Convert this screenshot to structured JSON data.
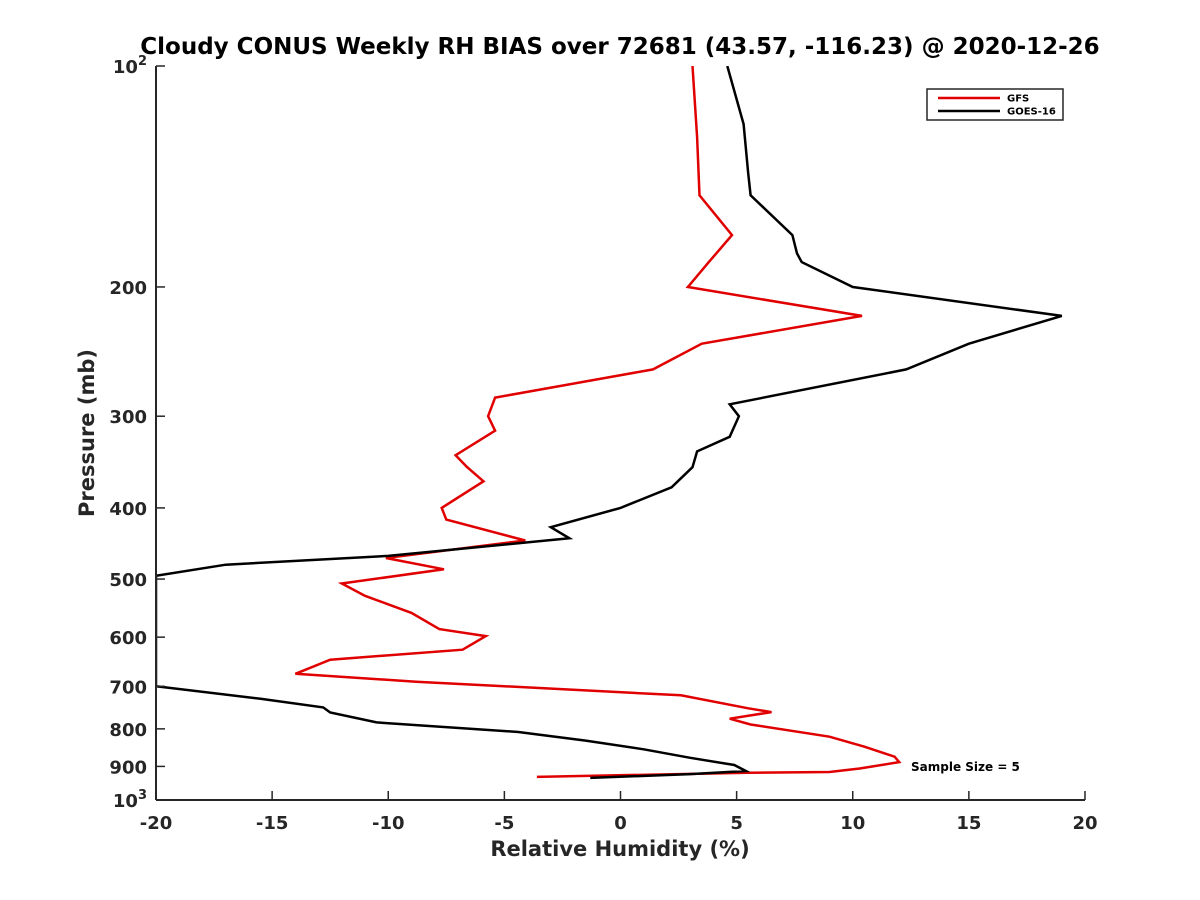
{
  "chart_data": {
    "type": "line",
    "title": "Cloudy CONUS Weekly RH BIAS over 72681 (43.57, -116.23) @ 2020-12-26",
    "xlabel": "Relative Humidity (%)",
    "ylabel": "Pressure (mb)",
    "xlim": [
      -20,
      20
    ],
    "ylim": [
      100,
      1000
    ],
    "y_scale": "log",
    "y_reversed": true,
    "grid": false,
    "legend_position": "top-right",
    "x_ticks": [
      -20,
      -15,
      -10,
      -5,
      0,
      5,
      10,
      15,
      20
    ],
    "x_tick_labels": [
      "-20",
      "-15",
      "-10",
      "-5",
      "0",
      "5",
      "10",
      "15",
      "20"
    ],
    "y_ticks": [
      100,
      200,
      300,
      400,
      500,
      600,
      700,
      800,
      900,
      1000
    ],
    "y_tick_labels": [
      {
        "base": "10",
        "exp": "2"
      },
      {
        "base": "200"
      },
      {
        "base": "300"
      },
      {
        "base": "400"
      },
      {
        "base": "500"
      },
      {
        "base": "600"
      },
      {
        "base": "700"
      },
      {
        "base": "800"
      },
      {
        "base": "900"
      },
      {
        "base": "10",
        "exp": "3"
      }
    ],
    "series": [
      {
        "name": "GFS",
        "color": "#e00000",
        "points": [
          [
            3.1,
            100
          ],
          [
            3.3,
            125
          ],
          [
            3.4,
            150
          ],
          [
            4.8,
            170
          ],
          [
            3.8,
            185
          ],
          [
            2.9,
            200
          ],
          [
            10.4,
            219
          ],
          [
            3.5,
            239
          ],
          [
            1.4,
            259
          ],
          [
            -5.4,
            283
          ],
          [
            -5.7,
            300
          ],
          [
            -5.4,
            314
          ],
          [
            -7.1,
            339
          ],
          [
            -6.6,
            352
          ],
          [
            -5.9,
            368
          ],
          [
            -7.7,
            400
          ],
          [
            -7.5,
            415
          ],
          [
            -4.1,
            443
          ],
          [
            -10.1,
            468
          ],
          [
            -7.6,
            485
          ],
          [
            -12.0,
            507
          ],
          [
            -11.0,
            527
          ],
          [
            -9.0,
            556
          ],
          [
            -7.8,
            585
          ],
          [
            -5.8,
            598
          ],
          [
            -6.8,
            624
          ],
          [
            -12.5,
            644
          ],
          [
            -14.0,
            673
          ],
          [
            -8.8,
            690
          ],
          [
            2.6,
            720
          ],
          [
            5.5,
            750
          ],
          [
            6.5,
            759
          ],
          [
            4.7,
            775
          ],
          [
            5.6,
            789
          ],
          [
            9.0,
            820
          ],
          [
            10.5,
            846
          ],
          [
            11.8,
            873
          ],
          [
            12.0,
            888
          ],
          [
            10.3,
            906
          ],
          [
            9.0,
            916
          ],
          [
            5.5,
            918
          ],
          [
            -3.6,
            930
          ]
        ]
      },
      {
        "name": "GOES-16",
        "color": "#000000",
        "points": [
          [
            4.6,
            100
          ],
          [
            5.3,
            120
          ],
          [
            5.5,
            140
          ],
          [
            5.6,
            150
          ],
          [
            7.4,
            170
          ],
          [
            7.6,
            180
          ],
          [
            7.8,
            185
          ],
          [
            10.0,
            200
          ],
          [
            19.0,
            219
          ],
          [
            15.0,
            239
          ],
          [
            12.3,
            259
          ],
          [
            4.7,
            289
          ],
          [
            5.1,
            300
          ],
          [
            4.7,
            320
          ],
          [
            3.3,
            335
          ],
          [
            3.1,
            352
          ],
          [
            2.2,
            375
          ],
          [
            0.0,
            400
          ],
          [
            -3.0,
            425
          ],
          [
            -2.2,
            440
          ],
          [
            -10.0,
            465
          ],
          [
            -17.0,
            478
          ],
          [
            -20.0,
            495
          ],
          [
            -20.0,
            700
          ],
          [
            -15.5,
            728
          ],
          [
            -12.8,
            748
          ],
          [
            -12.5,
            760
          ],
          [
            -10.5,
            784
          ],
          [
            -4.4,
            808
          ],
          [
            -1.5,
            830
          ],
          [
            1.0,
            853
          ],
          [
            3.0,
            876
          ],
          [
            4.9,
            896
          ],
          [
            5.4,
            913
          ],
          [
            3.0,
            922
          ],
          [
            -1.3,
            933
          ]
        ]
      }
    ],
    "legend": [
      {
        "label": "GFS",
        "color": "#e00000"
      },
      {
        "label": "GOES-16",
        "color": "#000000"
      }
    ],
    "annotations": [
      "Sample Size = 5"
    ]
  }
}
